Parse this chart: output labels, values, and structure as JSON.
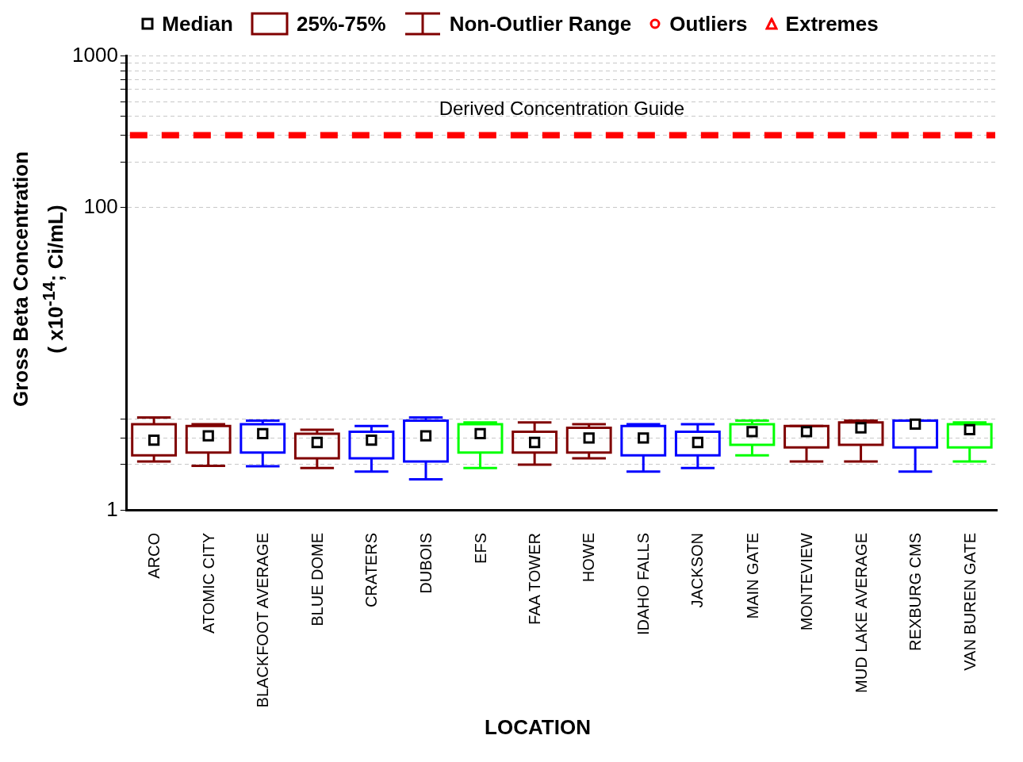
{
  "chart_data": {
    "type": "box",
    "xlabel": "LOCATION",
    "ylabel": "Gross Beta Concentration\n( x10$^{-14}$; Ci/mL)",
    "categories": [
      "ARCO",
      "ATOMIC CITY",
      "BLACKFOOT AVERAGE",
      "BLUE DOME",
      "CRATERS",
      "DUBOIS",
      "EFS",
      "FAA TOWER",
      "HOWE",
      "IDAHO FALLS",
      "JACKSON",
      "MAIN GATE",
      "MONTEVIEW",
      "MUD LAKE AVERAGE",
      "REXBURG CMS",
      "VAN BUREN GATE"
    ],
    "colors": [
      "#800000",
      "#800000",
      "#0000ff",
      "#800000",
      "#0000ff",
      "#0000ff",
      "#00ff00",
      "#800000",
      "#800000",
      "#0000ff",
      "#0000ff",
      "#00ff00",
      "#800000",
      "#800000",
      "#0000ff",
      "#00ff00"
    ],
    "boxes": [
      {
        "low": 2.1,
        "q1": 2.3,
        "median": 2.9,
        "q3": 3.7,
        "high": 4.1
      },
      {
        "low": 1.96,
        "q1": 2.4,
        "median": 3.1,
        "q3": 3.6,
        "high": 3.7
      },
      {
        "low": 1.95,
        "q1": 2.4,
        "median": 3.2,
        "q3": 3.7,
        "high": 3.9
      },
      {
        "low": 1.9,
        "q1": 2.2,
        "median": 2.8,
        "q3": 3.2,
        "high": 3.4
      },
      {
        "low": 1.8,
        "q1": 2.2,
        "median": 2.9,
        "q3": 3.3,
        "high": 3.6
      },
      {
        "low": 1.6,
        "q1": 2.1,
        "median": 3.1,
        "q3": 3.9,
        "high": 4.1
      },
      {
        "low": 1.9,
        "q1": 2.4,
        "median": 3.2,
        "q3": 3.7,
        "high": 3.8
      },
      {
        "low": 2.0,
        "q1": 2.4,
        "median": 2.8,
        "q3": 3.3,
        "high": 3.8
      },
      {
        "low": 2.2,
        "q1": 2.4,
        "median": 3.0,
        "q3": 3.5,
        "high": 3.7
      },
      {
        "low": 1.8,
        "q1": 2.3,
        "median": 3.0,
        "q3": 3.6,
        "high": 3.7
      },
      {
        "low": 1.9,
        "q1": 2.3,
        "median": 2.8,
        "q3": 3.3,
        "high": 3.7
      },
      {
        "low": 2.3,
        "q1": 2.7,
        "median": 3.3,
        "q3": 3.7,
        "high": 3.9
      },
      {
        "low": 2.1,
        "q1": 2.6,
        "median": 3.3,
        "q3": 3.6,
        "high": 3.6
      },
      {
        "low": 2.1,
        "q1": 2.7,
        "median": 3.5,
        "q3": 3.8,
        "high": 3.9
      },
      {
        "low": 1.8,
        "q1": 2.6,
        "median": 3.7,
        "q3": 3.9,
        "high": 3.9
      },
      {
        "low": 2.1,
        "q1": 2.6,
        "median": 3.4,
        "q3": 3.7,
        "high": 3.8
      }
    ],
    "log": true,
    "ylim": [
      1,
      1000
    ],
    "yticks": [
      1,
      {
        "value": 2,
        "label": null
      },
      {
        "value": 3,
        "label": null
      },
      {
        "value": 4,
        "label": null
      },
      100,
      {
        "value": 200,
        "label": null
      },
      {
        "value": 300,
        "label": null
      },
      {
        "value": 400,
        "label": null
      },
      {
        "value": 500,
        "label": null
      },
      {
        "value": 600,
        "label": null
      },
      {
        "value": 700,
        "label": null
      },
      {
        "value": 800,
        "label": null
      },
      {
        "value": 900,
        "label": null
      },
      1000
    ],
    "grid": "y",
    "legend": "top",
    "marker": "square",
    "ref_lines": [
      {
        "axis": "y",
        "value": 300,
        "label": "Derived Concentration Guide",
        "color": "#ff0000",
        "line_style": "dashed"
      }
    ],
    "annotations": [
      "Median",
      "25%-75%",
      "Non-Outlier Range",
      "Outliers",
      "Extremes"
    ]
  }
}
